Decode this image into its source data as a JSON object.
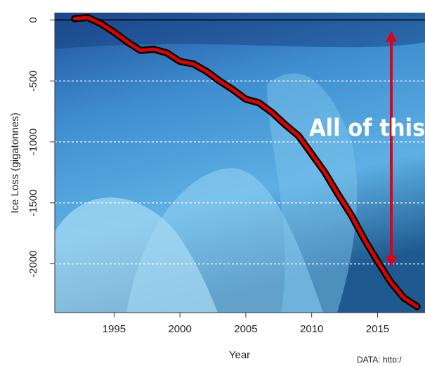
{
  "chart_data": {
    "type": "line",
    "x_label": "Year",
    "y_label": "Ice Loss (gigatonnes)",
    "annotation": "All of this",
    "source": "DATA: http:/",
    "x": [
      1992,
      1993,
      1994,
      1995,
      1996,
      1997,
      1998,
      1999,
      2000,
      2001,
      2002,
      2003,
      2004,
      2005,
      2006,
      2007,
      2008,
      2009,
      2010,
      2011,
      2012,
      2013,
      2014,
      2015,
      2016,
      2017,
      2018
    ],
    "series": [
      {
        "color": "#e00000",
        "values": [
          10,
          20,
          -30,
          -100,
          -180,
          -250,
          -240,
          -270,
          -340,
          -360,
          -420,
          -500,
          -570,
          -650,
          -680,
          -760,
          -860,
          -950,
          -1100,
          -1250,
          -1430,
          -1600,
          -1800,
          -1980,
          -2150,
          -2280,
          -2350
        ]
      }
    ],
    "xlim": [
      1990.5,
      2018.6
    ],
    "ylim": [
      -2400,
      60
    ],
    "xticks": [
      1995,
      2000,
      2005,
      2010,
      2015
    ],
    "yticks": [
      0,
      -500,
      -1000,
      -1500,
      -2000
    ],
    "grid": true
  }
}
